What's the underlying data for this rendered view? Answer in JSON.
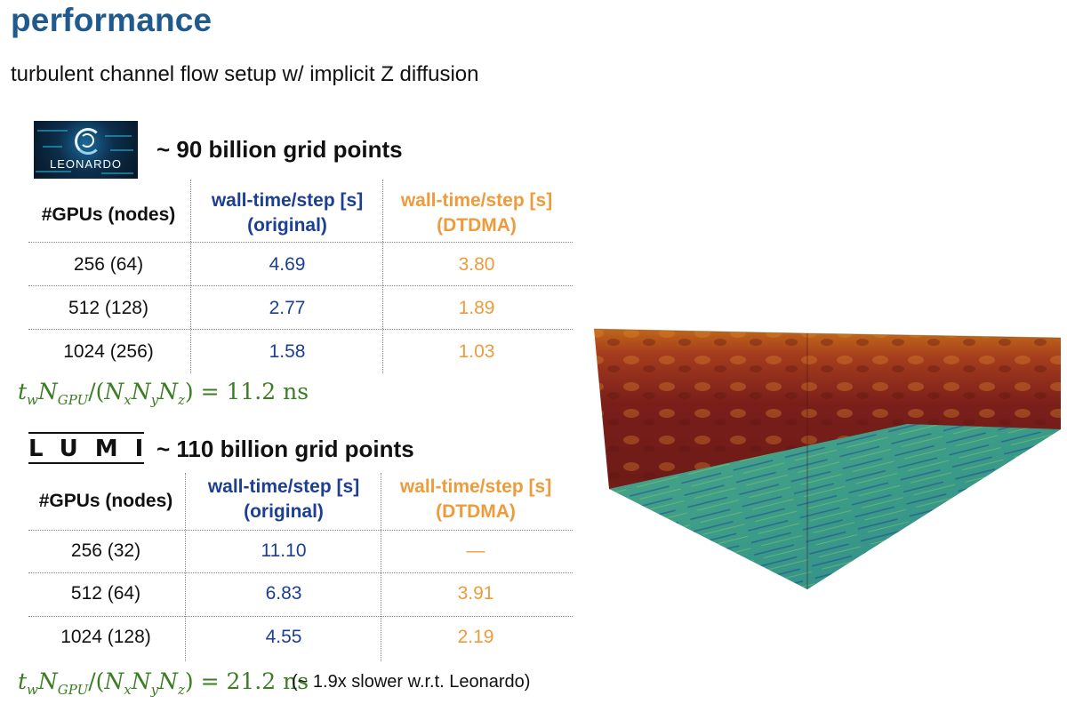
{
  "title": "performance",
  "subtitle": "turbulent channel flow setup w/ implicit Z diffusion",
  "leonardo": {
    "logo_text": "LEONARDO",
    "grid_points": "~ 90 billion grid points",
    "headers": {
      "gpus": "#GPUs (nodes)",
      "orig_line1": "wall-time/step [s]",
      "orig_line2": "(original)",
      "dtdma_line1": "wall-time/step [s]",
      "dtdma_line2": "(DTDMA)"
    },
    "rows": [
      {
        "gpus": "256 (64)",
        "original": "4.69",
        "dtdma": "3.80"
      },
      {
        "gpus": "512 (128)",
        "original": "2.77",
        "dtdma": "1.89"
      },
      {
        "gpus": "1024 (256)",
        "original": "1.58",
        "dtdma": "1.03"
      }
    ],
    "formula_value": "11.2 ns"
  },
  "lumi": {
    "logo_text": "LUMI",
    "grid_points": "~ 110 billion grid points",
    "headers": {
      "gpus": "#GPUs (nodes)",
      "orig_line1": "wall-time/step [s]",
      "orig_line2": "(original)",
      "dtdma_line1": "wall-time/step [s]",
      "dtdma_line2": "(DTDMA)"
    },
    "rows": [
      {
        "gpus": "256 (32)",
        "original": "11.10",
        "dtdma": "—"
      },
      {
        "gpus": "512 (64)",
        "original": "6.83",
        "dtdma": "3.91"
      },
      {
        "gpus": "1024 (128)",
        "original": "4.55",
        "dtdma": "2.19"
      }
    ],
    "formula_value": "21.2 ns",
    "note": "(~ 1.9x slower w.r.t. Leonardo)"
  },
  "colors": {
    "title": "#1f5a8e",
    "original": "#1c3f93",
    "dtdma": "#ee9b3c",
    "formula": "#3b7d23"
  }
}
